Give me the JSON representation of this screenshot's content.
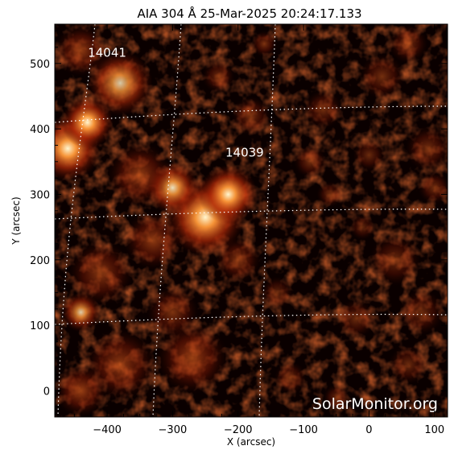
{
  "title": "AIA 304 Å 25-Mar-2025 20:24:17.133",
  "watermark": "SolarMonitor.org",
  "axes": {
    "xlabel": "X (arcsec)",
    "ylabel": "Y (arcsec)",
    "xlim": [
      -480,
      120
    ],
    "ylim": [
      -40,
      560
    ],
    "xticks": [
      {
        "value": -400,
        "label": "−400"
      },
      {
        "value": -300,
        "label": "−300"
      },
      {
        "value": -200,
        "label": "−200"
      },
      {
        "value": -100,
        "label": "−100"
      },
      {
        "value": 0,
        "label": "0"
      },
      {
        "value": 100,
        "label": "100"
      }
    ],
    "yticks": [
      {
        "value": 0,
        "label": "0"
      },
      {
        "value": 100,
        "label": "100"
      },
      {
        "value": 200,
        "label": "200"
      },
      {
        "value": 300,
        "label": "300"
      },
      {
        "value": 400,
        "label": "400"
      },
      {
        "value": 500,
        "label": "500"
      }
    ]
  },
  "regions": [
    {
      "label": "14041",
      "x": -400,
      "y": 510
    },
    {
      "label": "14039",
      "x": -190,
      "y": 358
    }
  ],
  "blobs": [
    {
      "x": -250,
      "y": 265,
      "r": 60,
      "i": 1.0
    },
    {
      "x": -215,
      "y": 300,
      "r": 45,
      "i": 0.8
    },
    {
      "x": -300,
      "y": 310,
      "r": 40,
      "i": 0.7
    },
    {
      "x": -460,
      "y": 370,
      "r": 50,
      "i": 0.9
    },
    {
      "x": -430,
      "y": 410,
      "r": 40,
      "i": 0.8
    },
    {
      "x": -380,
      "y": 470,
      "r": 50,
      "i": 0.6
    },
    {
      "x": -440,
      "y": 520,
      "r": 40,
      "i": 0.5
    },
    {
      "x": -350,
      "y": 330,
      "r": 50,
      "i": 0.5
    },
    {
      "x": -330,
      "y": 230,
      "r": 45,
      "i": 0.5
    },
    {
      "x": -410,
      "y": 180,
      "r": 50,
      "i": 0.45
    },
    {
      "x": -440,
      "y": 120,
      "r": 30,
      "i": 0.6
    },
    {
      "x": -380,
      "y": 40,
      "r": 55,
      "i": 0.5
    },
    {
      "x": -270,
      "y": 50,
      "r": 55,
      "i": 0.55
    },
    {
      "x": -440,
      "y": 0,
      "r": 40,
      "i": 0.55
    },
    {
      "x": -300,
      "y": 120,
      "r": 40,
      "i": 0.4
    },
    {
      "x": -200,
      "y": 200,
      "r": 35,
      "i": 0.4
    },
    {
      "x": -180,
      "y": 420,
      "r": 30,
      "i": 0.35
    },
    {
      "x": -230,
      "y": 480,
      "r": 25,
      "i": 0.35
    },
    {
      "x": -160,
      "y": 530,
      "r": 20,
      "i": 0.4
    },
    {
      "x": -70,
      "y": 430,
      "r": 30,
      "i": 0.35
    },
    {
      "x": -90,
      "y": 350,
      "r": 25,
      "i": 0.35
    },
    {
      "x": -60,
      "y": 300,
      "r": 20,
      "i": 0.3
    },
    {
      "x": 20,
      "y": 480,
      "r": 35,
      "i": 0.35
    },
    {
      "x": 60,
      "y": 530,
      "r": 30,
      "i": 0.35
    },
    {
      "x": 90,
      "y": 370,
      "r": 35,
      "i": 0.35
    },
    {
      "x": 100,
      "y": 310,
      "r": 25,
      "i": 0.35
    },
    {
      "x": 40,
      "y": 200,
      "r": 40,
      "i": 0.3
    },
    {
      "x": 80,
      "y": 120,
      "r": 35,
      "i": 0.3
    },
    {
      "x": -20,
      "y": 110,
      "r": 30,
      "i": 0.3
    },
    {
      "x": -120,
      "y": 20,
      "r": 25,
      "i": 0.3
    },
    {
      "x": -50,
      "y": -10,
      "r": 20,
      "i": 0.3
    },
    {
      "x": 60,
      "y": 40,
      "r": 30,
      "i": 0.3
    },
    {
      "x": -140,
      "y": 150,
      "r": 25,
      "i": 0.25
    },
    {
      "x": 0,
      "y": 360,
      "r": 25,
      "i": 0.3
    },
    {
      "x": -10,
      "y": 250,
      "r": 20,
      "i": 0.25
    }
  ]
}
